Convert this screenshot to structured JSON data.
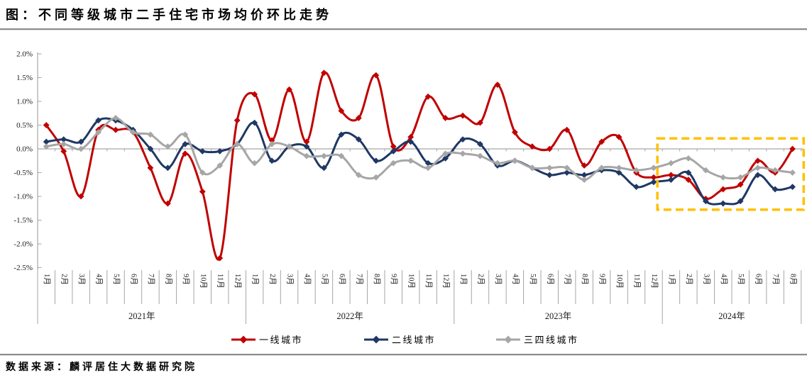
{
  "title": "图：不同等级城市二手住宅市场均价环比走势",
  "source": "数据来源：麟评居住大数据研究院",
  "chart_data": {
    "type": "line",
    "title": "不同等级城市二手住宅市场均价环比走势",
    "ylim": [
      -2.5,
      2.0
    ],
    "grid": "zero-line-only",
    "legend_position": "bottom",
    "y_tick_labels": [
      "2.0%",
      "1.5%",
      "1.0%",
      "0.5%",
      "0.0%",
      "-0.5%",
      "-1.0%",
      "-1.5%",
      "-2.0%",
      "-2.5%"
    ],
    "years": [
      {
        "label": "2021年",
        "months": 12
      },
      {
        "label": "2022年",
        "months": 12
      },
      {
        "label": "2023年",
        "months": 12
      },
      {
        "label": "2024年",
        "months": 8
      }
    ],
    "x_labels": [
      "1月",
      "2月",
      "3月",
      "4月",
      "5月",
      "6月",
      "7月",
      "8月",
      "9月",
      "10月",
      "11月",
      "12月",
      "1月",
      "2月",
      "3月",
      "4月",
      "5月",
      "6月",
      "7月",
      "8月",
      "9月",
      "10月",
      "11月",
      "12月",
      "1月",
      "2月",
      "3月",
      "4月",
      "5月",
      "6月",
      "7月",
      "8月",
      "9月",
      "10月",
      "11月",
      "12月",
      "1月",
      "2月",
      "3月",
      "4月",
      "5月",
      "6月",
      "7月",
      "8月"
    ],
    "series": [
      {
        "name": "一线城市",
        "color": "#c00000",
        "values": [
          0.5,
          -0.05,
          -1.0,
          0.4,
          0.4,
          0.35,
          -0.4,
          -1.15,
          -0.1,
          -0.9,
          -2.3,
          0.6,
          1.15,
          0.18,
          1.25,
          0.15,
          1.6,
          0.8,
          0.65,
          1.55,
          0.05,
          0.25,
          1.1,
          0.65,
          0.7,
          0.55,
          1.35,
          0.35,
          0.05,
          0.0,
          0.4,
          -0.35,
          0.15,
          0.25,
          -0.5,
          -0.6,
          -0.55,
          -0.65,
          -1.05,
          -0.85,
          -0.75,
          -0.25,
          -0.5,
          0.0
        ]
      },
      {
        "name": "二线城市",
        "color": "#1f3864",
        "values": [
          0.15,
          0.2,
          0.15,
          0.6,
          0.6,
          0.4,
          0.0,
          -0.4,
          0.1,
          -0.05,
          -0.05,
          0.1,
          0.55,
          -0.25,
          0.05,
          0.05,
          -0.4,
          0.3,
          0.2,
          -0.25,
          -0.05,
          0.15,
          -0.3,
          -0.2,
          0.2,
          0.1,
          -0.35,
          -0.25,
          -0.4,
          -0.55,
          -0.5,
          -0.55,
          -0.45,
          -0.5,
          -0.8,
          -0.7,
          -0.65,
          -0.5,
          -1.1,
          -1.15,
          -1.1,
          -0.55,
          -0.85,
          -0.8
        ]
      },
      {
        "name": "三四线城市",
        "color": "#a6a6a6",
        "values": [
          0.05,
          0.1,
          0.0,
          0.35,
          0.65,
          0.35,
          0.3,
          0.05,
          0.3,
          -0.5,
          -0.35,
          0.1,
          -0.3,
          0.1,
          0.05,
          -0.15,
          -0.15,
          -0.15,
          -0.55,
          -0.6,
          -0.3,
          -0.25,
          -0.4,
          -0.1,
          -0.1,
          -0.15,
          -0.3,
          -0.25,
          -0.4,
          -0.4,
          -0.4,
          -0.65,
          -0.4,
          -0.4,
          -0.45,
          -0.4,
          -0.3,
          -0.2,
          -0.45,
          -0.6,
          -0.6,
          -0.4,
          -0.45,
          -0.5
        ]
      }
    ],
    "highlight_box": {
      "start_index": 36,
      "end_index": 43,
      "y_top": 0.22,
      "y_bottom": -1.28,
      "color": "#ffc000"
    }
  }
}
